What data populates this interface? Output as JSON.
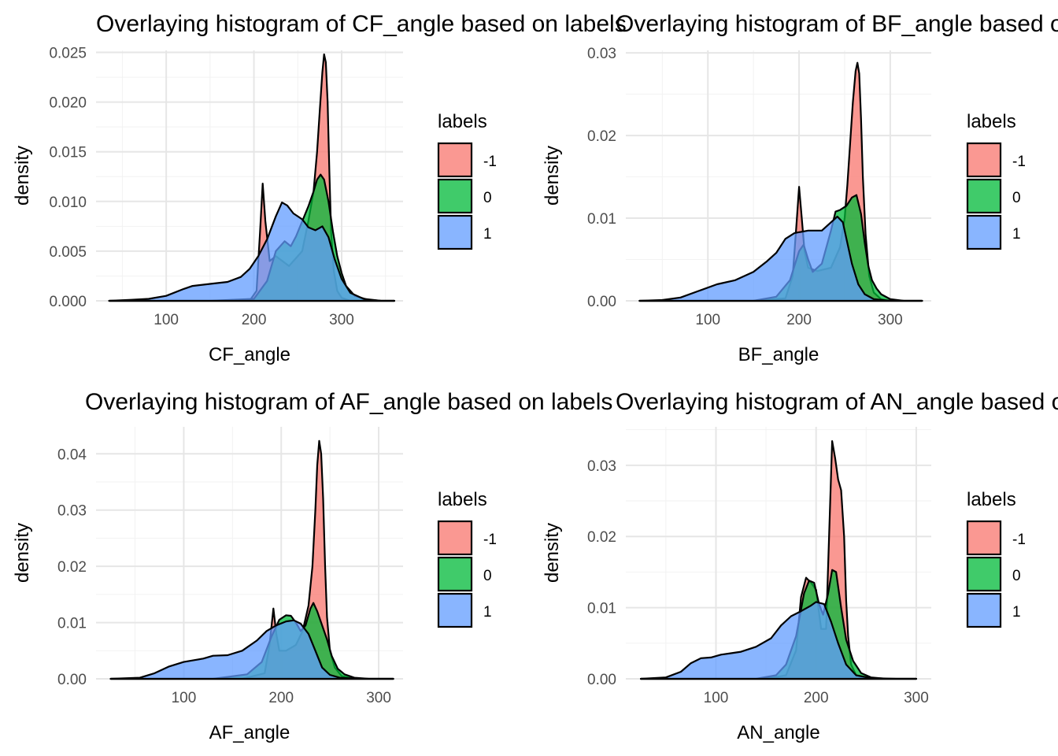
{
  "chart_data": [
    {
      "type": "area",
      "title": "Overlaying histogram of CF_angle based on labels",
      "xlabel": "CF_angle",
      "ylabel": "density",
      "xlim": [
        20,
        370
      ],
      "ylim": [
        0,
        0.0252
      ],
      "xticks": [
        100,
        200,
        300
      ],
      "yticks": [
        0,
        0.005,
        0.01,
        0.015,
        0.02,
        0.025
      ],
      "ytick_labels": [
        "0.000",
        "0.005",
        "0.010",
        "0.015",
        "0.020",
        "0.025"
      ],
      "legend": {
        "title": "labels",
        "placement": "right",
        "entries": [
          "-1",
          "0",
          "1"
        ]
      },
      "grid": true,
      "series": [
        {
          "name": "-1",
          "color": "#F8766D",
          "x": [
            35,
            100,
            160,
            195,
            203,
            207,
            210,
            213,
            218,
            225,
            240,
            255,
            262,
            268,
            272,
            275,
            278,
            280,
            282,
            284,
            286,
            288,
            291,
            295,
            300,
            310,
            325,
            345,
            360
          ],
          "y": [
            0,
            0,
            0,
            0,
            0.001,
            0.007,
            0.0118,
            0.008,
            0.004,
            0.0045,
            0.0035,
            0.005,
            0.008,
            0.011,
            0.015,
            0.019,
            0.023,
            0.0248,
            0.024,
            0.02,
            0.013,
            0.007,
            0.003,
            0.001,
            0.0003,
            0,
            0,
            0,
            0
          ]
        },
        {
          "name": "0",
          "color": "#00BA38",
          "x": [
            35,
            150,
            200,
            215,
            225,
            235,
            242,
            248,
            255,
            262,
            268,
            272,
            276,
            280,
            285,
            290,
            295,
            300,
            305,
            315,
            330,
            345,
            360
          ],
          "y": [
            0,
            0,
            0.0002,
            0.002,
            0.005,
            0.006,
            0.0055,
            0.0065,
            0.008,
            0.0095,
            0.011,
            0.0122,
            0.0127,
            0.0122,
            0.01,
            0.007,
            0.0045,
            0.0028,
            0.0015,
            0.0005,
            0.0001,
            0,
            0
          ]
        },
        {
          "name": "1",
          "color": "#619CFF",
          "x": [
            35,
            60,
            80,
            100,
            120,
            130,
            150,
            170,
            185,
            195,
            205,
            215,
            225,
            232,
            238,
            245,
            255,
            262,
            270,
            278,
            285,
            292,
            300,
            310,
            325,
            345,
            360
          ],
          "y": [
            0,
            0.0001,
            0.0002,
            0.0005,
            0.0012,
            0.0015,
            0.0017,
            0.0019,
            0.0024,
            0.0032,
            0.0045,
            0.0062,
            0.0085,
            0.0099,
            0.0096,
            0.0088,
            0.0082,
            0.0074,
            0.0071,
            0.0075,
            0.0064,
            0.0042,
            0.0022,
            0.0008,
            0.0002,
            0,
            0
          ]
        }
      ]
    },
    {
      "type": "area",
      "title": "Overlaying histogram of BF_angle based on labels",
      "xlabel": "BF_angle",
      "ylabel": "density",
      "xlim": [
        10,
        345
      ],
      "ylim": [
        0,
        0.0303
      ],
      "xticks": [
        100,
        200,
        300
      ],
      "yticks": [
        0,
        0.01,
        0.02,
        0.03
      ],
      "ytick_labels": [
        "0.00",
        "0.01",
        "0.02",
        "0.03"
      ],
      "legend": {
        "title": "labels",
        "placement": "right",
        "entries": [
          "-1",
          "0",
          "1"
        ]
      },
      "grid": true,
      "series": [
        {
          "name": "-1",
          "color": "#F8766D",
          "x": [
            25,
            150,
            185,
            193,
            197,
            200,
            203,
            206,
            210,
            220,
            235,
            245,
            250,
            253,
            256,
            259,
            262,
            264,
            266,
            268,
            270,
            273,
            277,
            282,
            290,
            300,
            315,
            335
          ],
          "y": [
            0,
            0,
            0.0003,
            0.003,
            0.009,
            0.0138,
            0.01,
            0.006,
            0.004,
            0.0036,
            0.004,
            0.0065,
            0.01,
            0.014,
            0.019,
            0.024,
            0.0278,
            0.0288,
            0.0275,
            0.022,
            0.015,
            0.008,
            0.003,
            0.001,
            0.0002,
            0,
            0,
            0
          ]
        },
        {
          "name": "0",
          "color": "#00BA38",
          "x": [
            25,
            150,
            175,
            190,
            200,
            205,
            210,
            215,
            225,
            235,
            240,
            245,
            252,
            258,
            263,
            268,
            272,
            276,
            280,
            285,
            290,
            300,
            315,
            335
          ],
          "y": [
            0,
            0,
            0.0005,
            0.0025,
            0.006,
            0.0068,
            0.005,
            0.0035,
            0.0045,
            0.0085,
            0.0108,
            0.011,
            0.0115,
            0.0125,
            0.0128,
            0.0105,
            0.007,
            0.0042,
            0.0025,
            0.0015,
            0.0008,
            0.0002,
            0,
            0
          ]
        },
        {
          "name": "1",
          "color": "#619CFF",
          "x": [
            25,
            50,
            70,
            90,
            110,
            130,
            150,
            165,
            175,
            185,
            195,
            210,
            225,
            235,
            242,
            248,
            253,
            258,
            265,
            272,
            282,
            300,
            320,
            335
          ],
          "y": [
            0,
            0.0001,
            0.0004,
            0.0012,
            0.002,
            0.0025,
            0.0035,
            0.0048,
            0.0058,
            0.0075,
            0.0082,
            0.0085,
            0.0085,
            0.0095,
            0.0102,
            0.0095,
            0.007,
            0.0045,
            0.002,
            0.0008,
            0.0002,
            0,
            0,
            0
          ]
        }
      ]
    },
    {
      "type": "area",
      "title": "Overlaying histogram of AF_angle based on labels",
      "xlabel": "AF_angle",
      "ylabel": "density",
      "xlim": [
        10,
        325
      ],
      "ylim": [
        0,
        0.0448
      ],
      "xticks": [
        100,
        200,
        300
      ],
      "yticks": [
        0,
        0.01,
        0.02,
        0.03,
        0.04
      ],
      "ytick_labels": [
        "0.00",
        "0.01",
        "0.02",
        "0.03",
        "0.04"
      ],
      "legend": {
        "title": "labels",
        "placement": "right",
        "entries": [
          "-1",
          "0",
          "1"
        ]
      },
      "grid": true,
      "series": [
        {
          "name": "-1",
          "color": "#F8766D",
          "x": [
            25,
            160,
            183,
            188,
            192,
            195,
            198,
            205,
            215,
            222,
            228,
            232,
            235,
            237,
            239,
            241,
            243,
            245,
            247,
            250,
            255,
            262,
            275,
            295,
            315
          ],
          "y": [
            0,
            0,
            0.001,
            0.006,
            0.0125,
            0.008,
            0.005,
            0.005,
            0.006,
            0.0085,
            0.013,
            0.02,
            0.03,
            0.038,
            0.0423,
            0.04,
            0.032,
            0.02,
            0.011,
            0.005,
            0.002,
            0.0005,
            0,
            0,
            0
          ]
        },
        {
          "name": "0",
          "color": "#00BA38",
          "x": [
            25,
            130,
            165,
            180,
            190,
            198,
            205,
            210,
            215,
            220,
            225,
            230,
            233,
            237,
            242,
            247,
            252,
            258,
            265,
            275,
            290,
            315
          ],
          "y": [
            0,
            0,
            0.0008,
            0.003,
            0.0075,
            0.0105,
            0.0113,
            0.0112,
            0.01,
            0.0085,
            0.0095,
            0.0125,
            0.0135,
            0.012,
            0.0095,
            0.007,
            0.004,
            0.0018,
            0.0008,
            0.0002,
            0,
            0
          ]
        },
        {
          "name": "1",
          "color": "#619CFF",
          "x": [
            25,
            55,
            70,
            85,
            100,
            110,
            120,
            130,
            145,
            160,
            175,
            185,
            195,
            205,
            213,
            220,
            228,
            235,
            242,
            250,
            260,
            280,
            300,
            315
          ],
          "y": [
            0,
            0.0002,
            0.001,
            0.0022,
            0.003,
            0.0033,
            0.0036,
            0.0041,
            0.0042,
            0.005,
            0.0068,
            0.0085,
            0.0095,
            0.0102,
            0.0104,
            0.0098,
            0.008,
            0.005,
            0.002,
            0.0007,
            0.0002,
            0,
            0,
            0
          ]
        }
      ]
    },
    {
      "type": "area",
      "title": "Overlaying histogram of AN_angle based on labels",
      "xlabel": "AN_angle",
      "ylabel": "density",
      "xlim": [
        10,
        315
      ],
      "ylim": [
        0,
        0.0354
      ],
      "xticks": [
        100,
        200,
        300
      ],
      "yticks": [
        0,
        0.01,
        0.02,
        0.03
      ],
      "ytick_labels": [
        "0.00",
        "0.01",
        "0.02",
        "0.03"
      ],
      "legend": {
        "title": "labels",
        "placement": "right",
        "entries": [
          "-1",
          "0",
          "1"
        ]
      },
      "grid": true,
      "series": [
        {
          "name": "-1",
          "color": "#F8766D",
          "x": [
            25,
            150,
            170,
            180,
            185,
            190,
            195,
            200,
            205,
            210,
            213,
            216,
            219,
            222,
            225,
            228,
            230,
            232,
            235,
            240,
            250,
            265,
            280,
            300
          ],
          "y": [
            0,
            0,
            0.0005,
            0.004,
            0.0115,
            0.0142,
            0.0135,
            0.0125,
            0.007,
            0.007,
            0.02,
            0.0334,
            0.031,
            0.028,
            0.0265,
            0.02,
            0.011,
            0.006,
            0.002,
            0.0005,
            0,
            0,
            0,
            0
          ]
        },
        {
          "name": "0",
          "color": "#00BA38",
          "x": [
            25,
            140,
            160,
            170,
            180,
            188,
            193,
            198,
            203,
            207,
            212,
            216,
            220,
            225,
            230,
            237,
            245,
            255,
            270,
            300
          ],
          "y": [
            0,
            0,
            0.0005,
            0.002,
            0.006,
            0.012,
            0.0138,
            0.0135,
            0.0105,
            0.009,
            0.012,
            0.0153,
            0.015,
            0.01,
            0.0055,
            0.0025,
            0.0008,
            0.0002,
            0,
            0
          ]
        },
        {
          "name": "1",
          "color": "#619CFF",
          "x": [
            25,
            50,
            65,
            75,
            85,
            95,
            105,
            115,
            125,
            140,
            155,
            165,
            175,
            185,
            195,
            200,
            208,
            215,
            222,
            230,
            240,
            255,
            280,
            300
          ],
          "y": [
            0,
            0.0002,
            0.001,
            0.0022,
            0.0029,
            0.003,
            0.0034,
            0.0036,
            0.0038,
            0.0045,
            0.0057,
            0.0075,
            0.0088,
            0.0095,
            0.0103,
            0.0108,
            0.0105,
            0.008,
            0.005,
            0.002,
            0.0005,
            0.0001,
            0,
            0
          ]
        }
      ]
    }
  ]
}
